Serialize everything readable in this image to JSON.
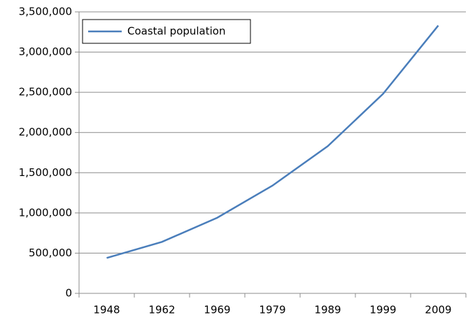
{
  "chart_data": {
    "type": "line",
    "categories": [
      "1948",
      "1962",
      "1969",
      "1979",
      "1989",
      "1999",
      "2009"
    ],
    "series": [
      {
        "name": "Coastal population",
        "color": "#4a7ebb",
        "values": [
          440000,
          640000,
          940000,
          1340000,
          1830000,
          2480000,
          3330000
        ]
      }
    ],
    "ylim": [
      0,
      3500000
    ],
    "yticks": [
      0,
      {
        "value": 500000,
        "label": "500,000"
      },
      {
        "value": 1000000,
        "label": "1,000,000"
      },
      {
        "value": 1500000,
        "label": "1,500,000"
      },
      {
        "value": 2000000,
        "label": "2,000,000"
      },
      {
        "value": 2500000,
        "label": "2,500,000"
      },
      {
        "value": 3000000,
        "label": "3,000,000"
      },
      {
        "value": 3500000,
        "label": "3,500,000"
      }
    ],
    "grid": true,
    "legend": "upper left"
  }
}
